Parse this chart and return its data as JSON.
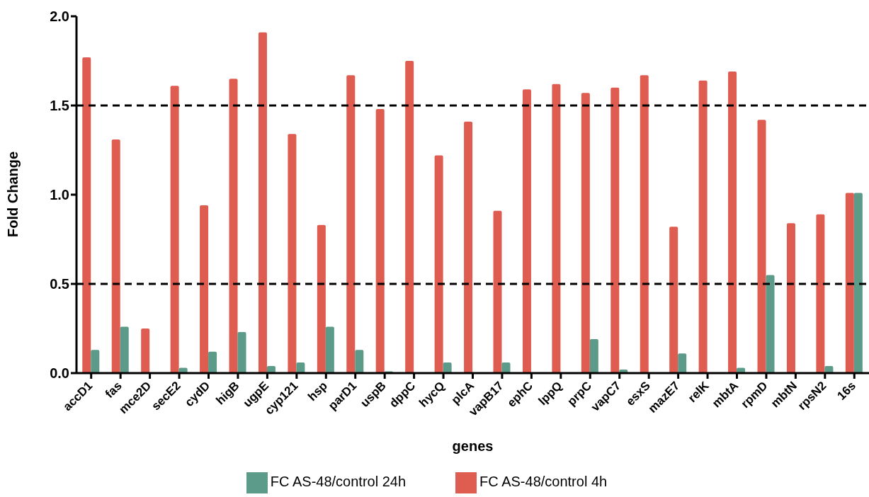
{
  "chart_data": {
    "type": "bar",
    "xlabel": "genes",
    "ylabel": "Fold Change",
    "categories": [
      "accD1",
      "fas",
      "mce2D",
      "secE2",
      "cydD",
      "higB",
      "ugpE",
      "cyp121",
      "hsp",
      "parD1",
      "uspB",
      "dppC",
      "hycQ",
      "plcA",
      "vapB17",
      "ephC",
      "lppQ",
      "prpC",
      "vapC7",
      "esxS",
      "mazE7",
      "relK",
      "mbtA",
      "rpmD",
      "mbtN",
      "rpsN2",
      "16s"
    ],
    "series": [
      {
        "name": "FC AS-48/control 4h",
        "color": "#de5c50",
        "values": [
          1.77,
          1.31,
          0.25,
          1.61,
          0.94,
          1.65,
          1.91,
          1.34,
          0.83,
          1.67,
          1.48,
          1.75,
          1.22,
          1.41,
          0.91,
          1.59,
          1.62,
          1.57,
          1.6,
          1.67,
          0.82,
          1.64,
          1.69,
          1.42,
          0.84,
          0.89,
          1.01
        ]
      },
      {
        "name": "FC AS-48/control 24h",
        "color": "#5c9a89",
        "values": [
          0.13,
          0.26,
          null,
          0.03,
          0.12,
          0.23,
          0.04,
          0.06,
          0.26,
          0.13,
          0.01,
          null,
          0.06,
          null,
          0.06,
          null,
          null,
          0.19,
          0.02,
          null,
          0.11,
          null,
          0.03,
          0.55,
          null,
          0.04,
          1.01
        ]
      }
    ],
    "ylim": [
      0,
      2
    ],
    "yticks": [
      {
        "value": 0,
        "label": "0.0"
      },
      {
        "value": 0.5,
        "label": "0.5"
      },
      {
        "value": 1,
        "label": "1.0"
      },
      {
        "value": 1.5,
        "label": "1.5"
      },
      {
        "value": 2,
        "label": "2.0"
      }
    ],
    "ref_lines": [
      {
        "axis": "y",
        "value": 0.5,
        "color": "#000000",
        "line_style": "dashed"
      },
      {
        "axis": "y",
        "value": 1.5,
        "color": "#000000",
        "line_style": "dashed"
      }
    ],
    "grid": false,
    "legend": "bottom"
  }
}
